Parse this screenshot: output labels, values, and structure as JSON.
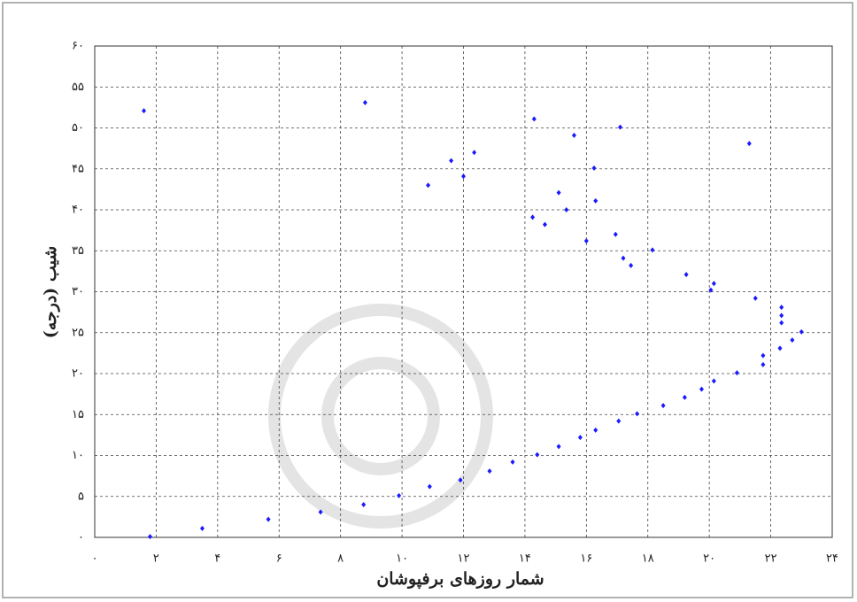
{
  "chart_data": {
    "type": "scatter",
    "x_label": "شمار روزهای برفپوشان",
    "y_label": "شیب (درجه)",
    "color": "#1a1aff",
    "grid": true,
    "xlim": [
      0,
      24
    ],
    "ylim": [
      0,
      60
    ],
    "xticks": [
      {
        "value": 0,
        "label": "۰"
      },
      {
        "value": 2,
        "label": "۲"
      },
      {
        "value": 4,
        "label": "۴"
      },
      {
        "value": 6,
        "label": "۶"
      },
      {
        "value": 8,
        "label": "۸"
      },
      {
        "value": 10,
        "label": "۱۰"
      },
      {
        "value": 12,
        "label": "۱۲"
      },
      {
        "value": 14,
        "label": "۱۴"
      },
      {
        "value": 16,
        "label": "۱۶"
      },
      {
        "value": 18,
        "label": "۱۸"
      },
      {
        "value": 20,
        "label": "۲۰"
      },
      {
        "value": 22,
        "label": "۲۲"
      },
      {
        "value": 24,
        "label": "۲۴"
      }
    ],
    "yticks": [
      {
        "value": 0,
        "label": "۰"
      },
      {
        "value": 5,
        "label": "۵"
      },
      {
        "value": 10,
        "label": "۱۰"
      },
      {
        "value": 15,
        "label": "۱۵"
      },
      {
        "value": 20,
        "label": "۲۰"
      },
      {
        "value": 25,
        "label": "۲۵"
      },
      {
        "value": 30,
        "label": "۳۰"
      },
      {
        "value": 35,
        "label": "۳۵"
      },
      {
        "value": 40,
        "label": "۴۰"
      },
      {
        "value": 45,
        "label": "۴۵"
      },
      {
        "value": 50,
        "label": "۵۰"
      },
      {
        "value": 55,
        "label": "۵۵"
      },
      {
        "value": 60,
        "label": "۶۰"
      }
    ],
    "x": [
      1.6,
      1.8,
      3.5,
      5.65,
      7.35,
      8.75,
      8.8,
      9.9,
      10.85,
      10.9,
      11.6,
      11.9,
      12.0,
      12.35,
      12.85,
      13.6,
      14.25,
      14.3,
      14.4,
      14.65,
      15.1,
      15.1,
      15.35,
      15.6,
      15.8,
      16.0,
      16.25,
      16.3,
      16.3,
      16.95,
      17.05,
      17.1,
      17.2,
      17.45,
      17.65,
      18.15,
      18.5,
      19.2,
      19.25,
      19.75,
      20.05,
      20.15,
      20.15,
      20.9,
      21.3,
      21.5,
      21.75,
      21.75,
      22.3,
      22.35,
      22.35,
      22.35,
      22.7,
      23.0
    ],
    "values": [
      52.1,
      0.1,
      1.1,
      2.2,
      3.1,
      4.0,
      53.1,
      5.1,
      43,
      6.2,
      46,
      7.0,
      44.1,
      47,
      8.1,
      9.2,
      39.1,
      51.1,
      10.1,
      38.2,
      11.1,
      42.1,
      40,
      49.1,
      12.2,
      36.2,
      45.1,
      13.1,
      41.1,
      37,
      14.2,
      50.1,
      34.1,
      33.2,
      15.1,
      35.1,
      16.1,
      17.1,
      32.1,
      18.1,
      30.2,
      19.1,
      31,
      20.1,
      48.1,
      29.2,
      22.2,
      21.1,
      23.1,
      26.2,
      27.1,
      28.1,
      24.1,
      25.1
    ]
  }
}
